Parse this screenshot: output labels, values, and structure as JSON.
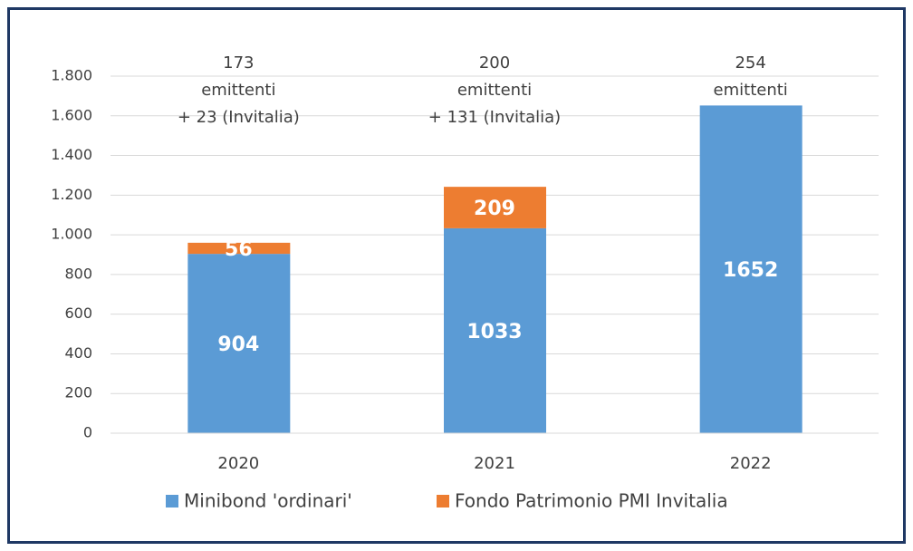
{
  "chart_data": {
    "type": "stacked_bar",
    "categories": [
      "2020",
      "2021",
      "2022"
    ],
    "series": [
      {
        "name": "Minibond 'ordinari'",
        "color": "#5b9bd5",
        "values": [
          904,
          1033,
          1652
        ]
      },
      {
        "name": "Fondo Patrimonio PMI Invitalia",
        "color": "#ed7d31",
        "values": [
          56,
          209,
          null
        ]
      }
    ],
    "annotations": [
      [
        "173",
        "emittenti",
        "+ 23 (Invitalia)"
      ],
      [
        "200",
        "emittenti",
        "+ 131 (Invitalia)"
      ],
      [
        "254",
        "emittenti"
      ]
    ],
    "ylim": [
      0,
      1800
    ],
    "yticks": [
      0,
      200,
      400,
      600,
      800,
      {
        "value": 1000,
        "label": "1.000"
      },
      {
        "value": 1200,
        "label": "1.200"
      },
      {
        "value": 1400,
        "label": "1.400"
      },
      {
        "value": 1600,
        "label": "1.600"
      },
      {
        "value": 1800,
        "label": "1.800"
      }
    ],
    "grid": true,
    "legend": "bottom"
  }
}
